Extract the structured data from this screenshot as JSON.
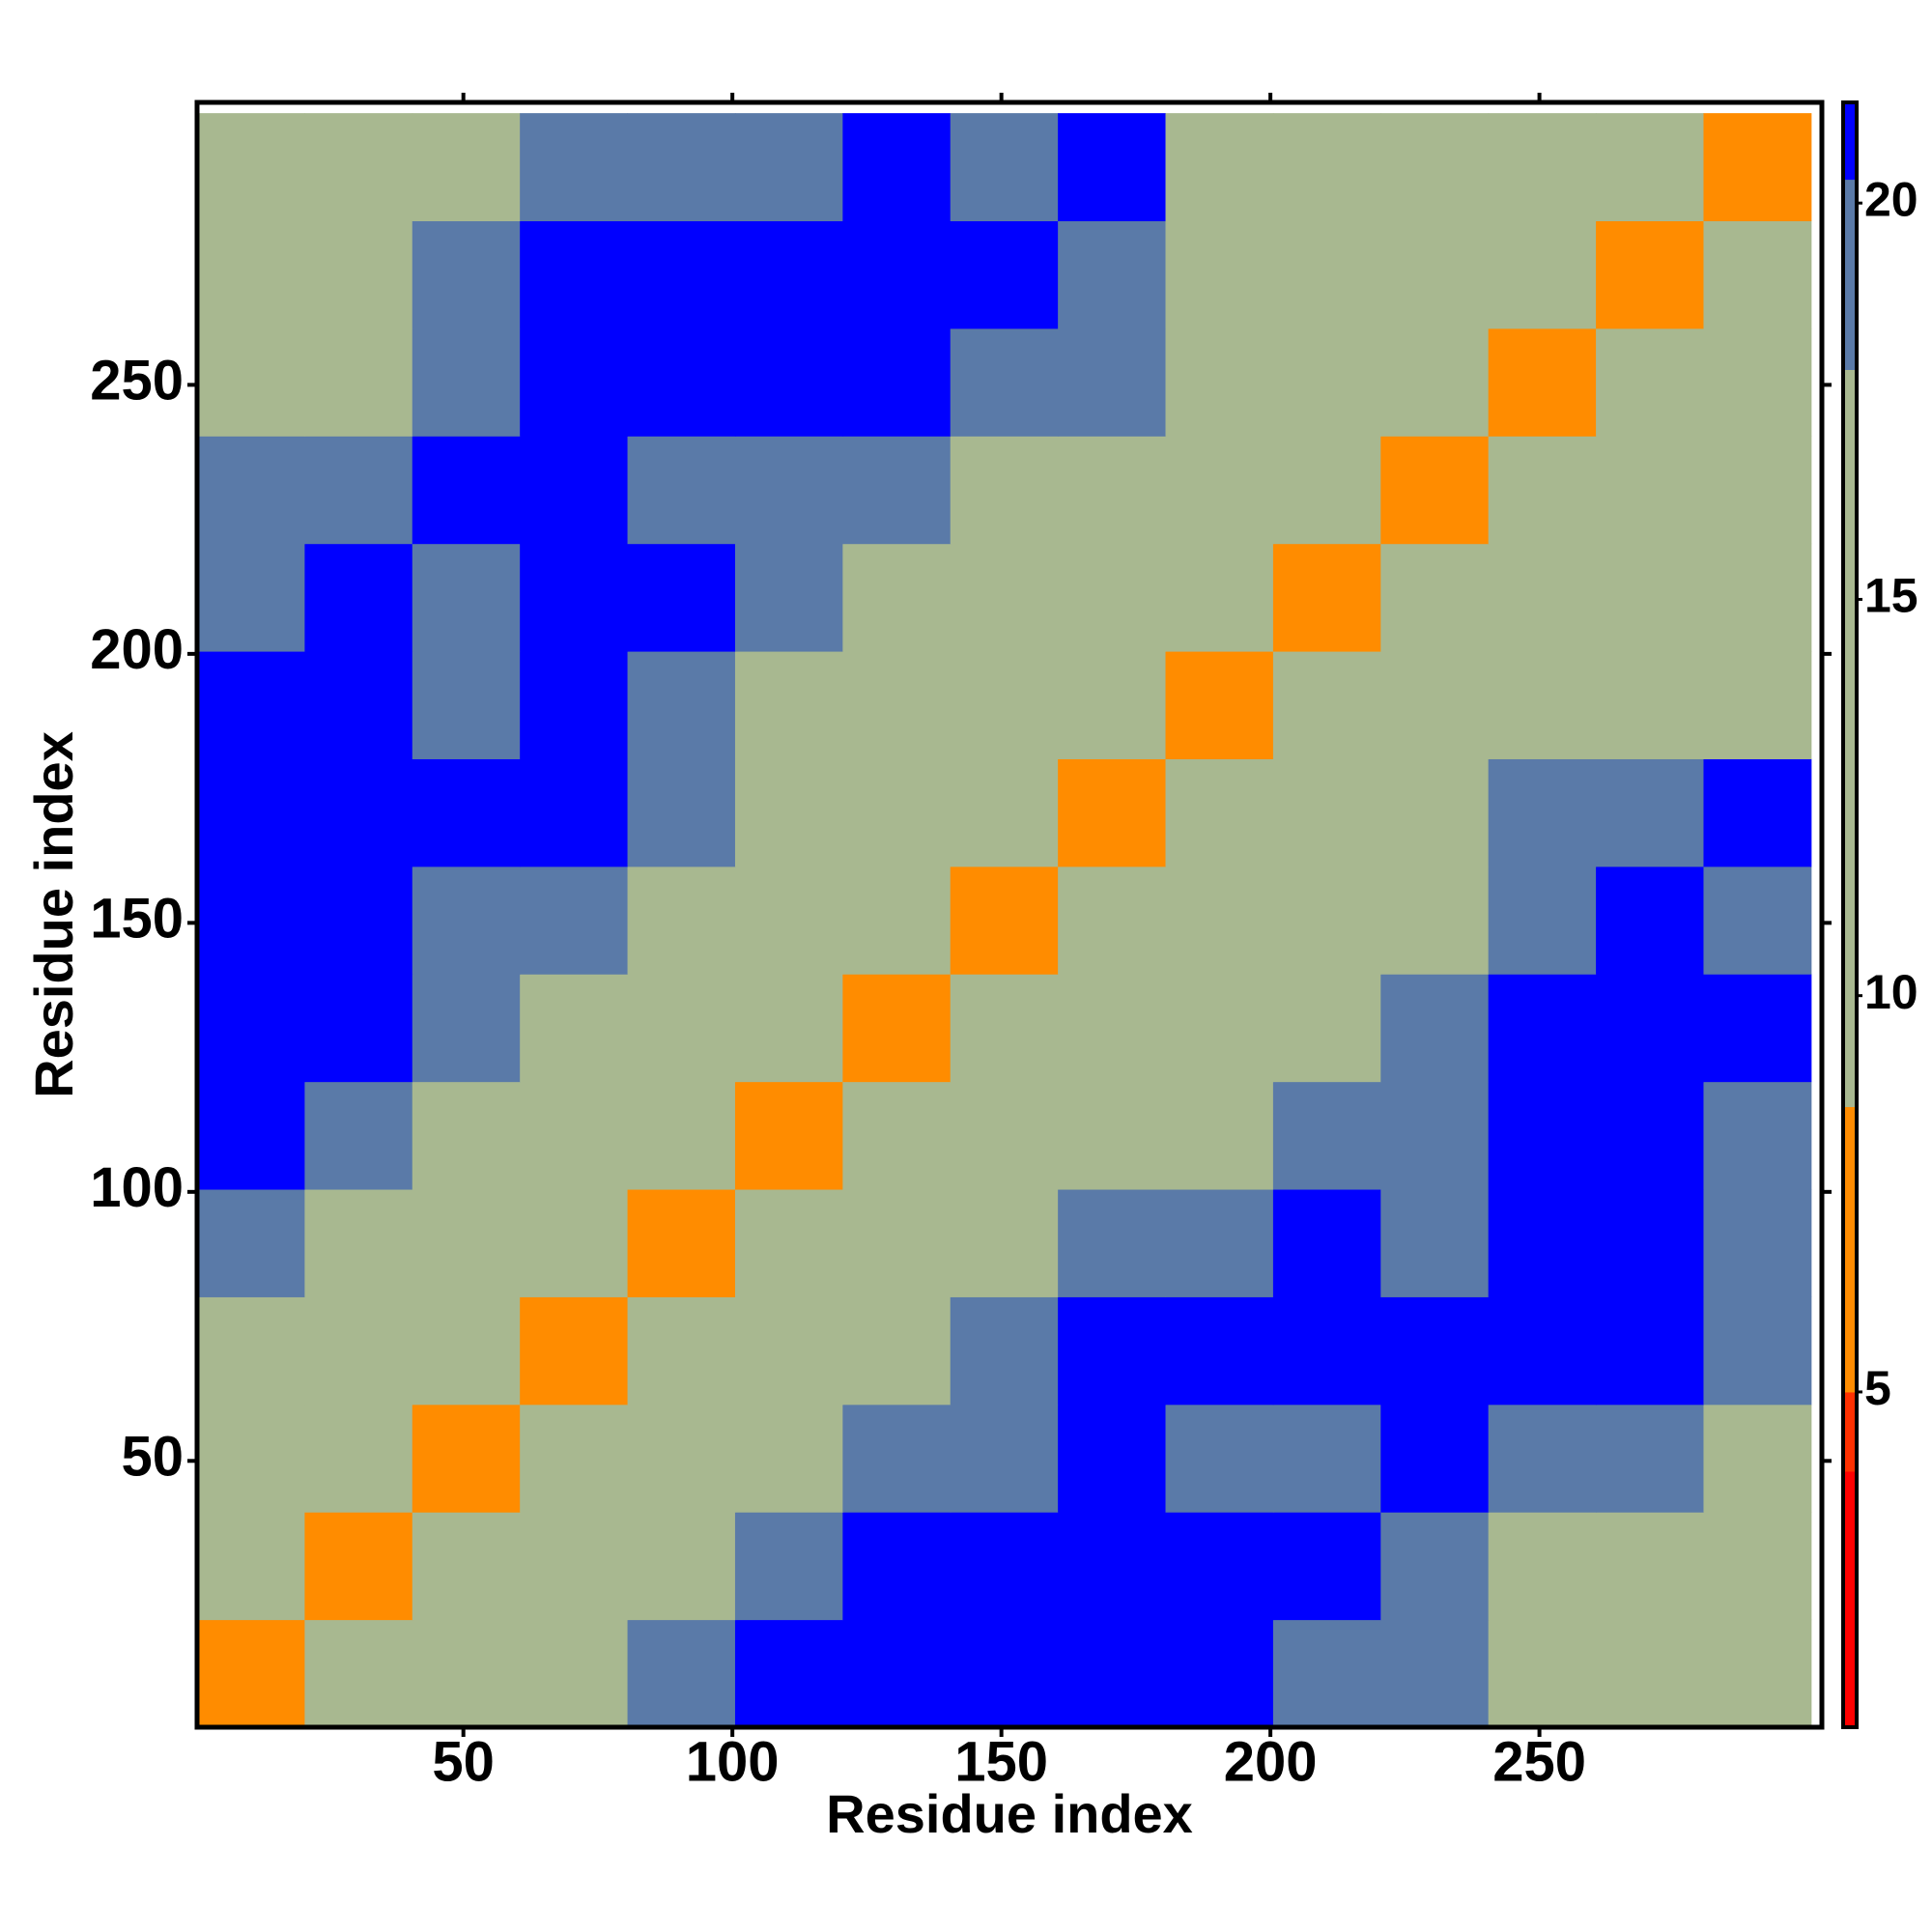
{
  "chart_data": {
    "type": "heatmap",
    "xlabel": "Residue index",
    "ylabel": "Residue index",
    "xlim": [
      0.5,
      302.5
    ],
    "ylim": [
      0.5,
      302.5
    ],
    "xticks": [
      50,
      100,
      150,
      200,
      250
    ],
    "yticks": [
      50,
      100,
      150,
      200,
      250
    ],
    "xbins": [
      0.5,
      20.5,
      40.5,
      60.5,
      80.5,
      100.5,
      120.5,
      140.5,
      160.5,
      180.5,
      200.5,
      220.5,
      240.5,
      260.5,
      280.5,
      300.5
    ],
    "ybins": [
      0.5,
      20.5,
      40.5,
      60.5,
      80.5,
      100.5,
      120.5,
      140.5,
      160.5,
      180.5,
      200.5,
      220.5,
      240.5,
      260.5,
      280.5,
      300.5
    ],
    "z": [
      [
        8,
        13,
        15,
        17,
        18,
        21,
        21,
        21,
        21,
        21,
        20,
        18,
        17,
        17,
        15
      ],
      [
        13,
        8,
        13,
        15,
        17,
        19,
        21,
        21,
        21,
        21,
        21,
        19,
        17,
        17,
        16
      ],
      [
        15,
        13,
        8,
        13,
        15,
        16,
        18,
        19,
        21,
        20,
        20,
        21,
        18,
        20,
        17
      ],
      [
        17,
        15,
        13,
        8,
        13,
        15,
        16,
        18,
        21,
        21,
        21,
        21,
        21,
        21,
        19
      ],
      [
        18,
        17,
        15,
        13,
        8,
        13,
        15,
        16,
        18,
        20,
        21,
        19,
        21,
        21,
        19
      ],
      [
        21,
        19,
        16,
        15,
        13,
        8,
        13,
        15,
        16,
        17,
        18,
        19,
        21,
        21,
        19
      ],
      [
        21,
        21,
        18,
        16,
        15,
        13,
        8,
        13,
        15,
        16,
        17,
        20,
        21,
        21,
        21
      ],
      [
        21,
        21,
        19,
        18,
        16,
        15,
        13,
        8,
        13,
        15,
        16,
        17,
        19,
        21,
        19
      ],
      [
        21,
        21,
        21,
        21,
        18,
        16,
        15,
        13,
        8,
        13,
        15,
        16,
        18,
        20,
        21
      ],
      [
        21,
        21,
        20,
        21,
        20,
        17,
        16,
        15,
        13,
        8,
        13,
        15,
        16,
        16,
        17
      ],
      [
        20,
        21,
        20,
        21,
        21,
        18,
        17,
        16,
        15,
        13,
        8,
        13,
        15,
        16,
        17
      ],
      [
        18,
        19,
        21,
        21,
        19,
        19,
        20,
        17,
        16,
        15,
        13,
        8,
        13,
        15,
        16
      ],
      [
        17,
        17,
        18,
        21,
        21,
        21,
        21,
        19,
        18,
        16,
        15,
        13,
        8,
        13,
        15
      ],
      [
        17,
        17,
        20,
        21,
        21,
        21,
        21,
        21,
        20,
        16,
        16,
        15,
        13,
        8,
        13
      ],
      [
        15,
        16,
        17,
        19,
        19,
        19,
        21,
        19,
        21,
        17,
        17,
        16,
        15,
        13,
        8
      ]
    ],
    "clim": [
      0.77,
      21.27
    ],
    "cticks": [
      5,
      10,
      15,
      20
    ],
    "colorscale": [
      [
        0.77,
        "#ff0000"
      ],
      [
        4,
        "#ff3000"
      ],
      [
        5,
        "#ff8c00"
      ],
      [
        8.6,
        "#a8b890"
      ],
      [
        17.9,
        "#5a7aa8"
      ],
      [
        20.3,
        "#0000ff"
      ]
    ]
  }
}
